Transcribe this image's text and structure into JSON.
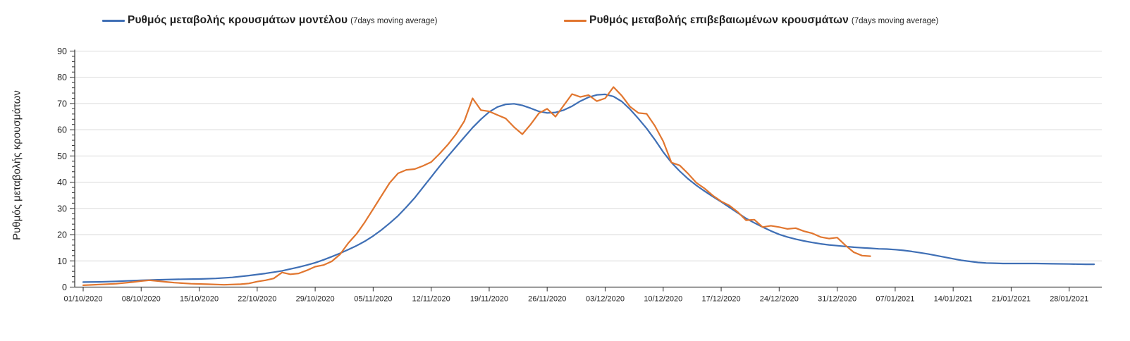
{
  "legend": [
    {
      "label": "Ρυθμός μεταβολής κρουσμάτων μοντέλου",
      "suffix": "(7days moving average)",
      "color": "#3F6FB5"
    },
    {
      "label": "Ρυθμός μεταβολής επιβεβαιωμένων κρουσμάτων",
      "suffix": "(7days moving average)",
      "color": "#E1762F"
    }
  ],
  "y_axis_title": "Ρυθμός μεταβολής κρουσμάτων",
  "colors": {
    "model_line": "#3F6FB5",
    "confirmed_line": "#E1762F",
    "gridline": "#D9D9D9",
    "axis": "#404040",
    "text": "#262626",
    "background": "#FFFFFF"
  },
  "chart_data": {
    "type": "line",
    "title": "",
    "xlabel": "",
    "ylabel": "Ρυθμός μεταβολής κρουσμάτων",
    "ylim": [
      0,
      90
    ],
    "y_ticks": [
      0,
      10,
      20,
      30,
      40,
      50,
      60,
      70,
      80,
      90
    ],
    "y_minor_tick_step": 2,
    "grid": "horizontal",
    "legend_position": "top",
    "x_unit": "days since 01/10/2020, weekly labeled ticks",
    "x_tick_days": [
      0,
      7,
      14,
      21,
      28,
      35,
      42,
      49,
      56,
      63,
      70,
      77,
      84,
      91,
      98,
      105,
      112,
      119
    ],
    "x_tick_labels": [
      "01/10/2020",
      "08/10/2020",
      "15/10/2020",
      "22/10/2020",
      "29/10/2020",
      "05/11/2020",
      "12/11/2020",
      "19/11/2020",
      "26/11/2020",
      "03/12/2020",
      "10/12/2020",
      "17/12/2020",
      "24/12/2020",
      "31/12/2020",
      "07/01/2021",
      "14/01/2021",
      "21/01/2021",
      "28/01/2021"
    ],
    "series": [
      {
        "name": "Ρυθμός μεταβολής κρουσμάτων μοντέλου (7days moving average)",
        "color": "#3F6FB5",
        "points": [
          [
            0,
            1.9
          ],
          [
            2,
            2.0
          ],
          [
            4,
            2.2
          ],
          [
            7,
            2.6
          ],
          [
            9,
            2.8
          ],
          [
            12,
            3.0
          ],
          [
            14,
            3.1
          ],
          [
            16,
            3.3
          ],
          [
            18,
            3.7
          ],
          [
            20,
            4.4
          ],
          [
            21,
            4.8
          ],
          [
            22,
            5.2
          ],
          [
            23,
            5.7
          ],
          [
            24,
            6.2
          ],
          [
            25,
            6.9
          ],
          [
            26,
            7.6
          ],
          [
            27,
            8.4
          ],
          [
            28,
            9.3
          ],
          [
            29,
            10.4
          ],
          [
            30,
            11.6
          ],
          [
            31,
            12.9
          ],
          [
            32,
            14.3
          ],
          [
            33,
            15.8
          ],
          [
            34,
            17.5
          ],
          [
            35,
            19.5
          ],
          [
            36,
            21.8
          ],
          [
            37,
            24.4
          ],
          [
            38,
            27.2
          ],
          [
            39,
            30.5
          ],
          [
            40,
            34.0
          ],
          [
            41,
            38.0
          ],
          [
            42,
            42.0
          ],
          [
            43,
            46.0
          ],
          [
            44,
            49.8
          ],
          [
            45,
            53.5
          ],
          [
            46,
            57.2
          ],
          [
            47,
            60.8
          ],
          [
            48,
            64.0
          ],
          [
            49,
            66.8
          ],
          [
            50,
            68.7
          ],
          [
            51,
            69.7
          ],
          [
            52,
            69.9
          ],
          [
            53,
            69.3
          ],
          [
            54,
            68.2
          ],
          [
            55,
            67.0
          ],
          [
            56,
            66.4
          ],
          [
            57,
            66.6
          ],
          [
            58,
            67.5
          ],
          [
            59,
            69.0
          ],
          [
            60,
            70.9
          ],
          [
            61,
            72.4
          ],
          [
            62,
            73.3
          ],
          [
            63,
            73.5
          ],
          [
            64,
            72.7
          ],
          [
            65,
            70.8
          ],
          [
            66,
            67.8
          ],
          [
            67,
            64.3
          ],
          [
            68,
            60.5
          ],
          [
            69,
            56.2
          ],
          [
            70,
            51.5
          ],
          [
            71,
            47.5
          ],
          [
            72,
            44.2
          ],
          [
            73,
            41.3
          ],
          [
            74,
            38.8
          ],
          [
            75,
            36.6
          ],
          [
            76,
            34.5
          ],
          [
            77,
            32.5
          ],
          [
            78,
            30.4
          ],
          [
            79,
            28.3
          ],
          [
            80,
            26.2
          ],
          [
            81,
            24.5
          ],
          [
            82,
            22.9
          ],
          [
            83,
            21.4
          ],
          [
            84,
            20.1
          ],
          [
            85,
            19.1
          ],
          [
            86,
            18.3
          ],
          [
            87,
            17.6
          ],
          [
            88,
            17.0
          ],
          [
            89,
            16.5
          ],
          [
            90,
            16.1
          ],
          [
            91,
            15.8
          ],
          [
            92,
            15.5
          ],
          [
            93,
            15.2
          ],
          [
            94,
            15.0
          ],
          [
            95,
            14.8
          ],
          [
            96,
            14.6
          ],
          [
            97,
            14.5
          ],
          [
            98,
            14.3
          ],
          [
            99,
            14.0
          ],
          [
            100,
            13.6
          ],
          [
            101,
            13.1
          ],
          [
            102,
            12.6
          ],
          [
            103,
            12.0
          ],
          [
            104,
            11.4
          ],
          [
            105,
            10.8
          ],
          [
            106,
            10.2
          ],
          [
            107,
            9.8
          ],
          [
            108,
            9.4
          ],
          [
            109,
            9.2
          ],
          [
            110,
            9.1
          ],
          [
            111,
            9.0
          ],
          [
            113,
            9.0
          ],
          [
            115,
            9.0
          ],
          [
            117,
            8.9
          ],
          [
            119,
            8.8
          ],
          [
            121,
            8.7
          ],
          [
            122,
            8.7
          ]
        ]
      },
      {
        "name": "Ρυθμός μεταβολής επιβεβαιωμένων κρουσμάτων (7days moving average)",
        "color": "#E1762F",
        "points": [
          [
            0,
            0.7
          ],
          [
            2,
            1.0
          ],
          [
            4,
            1.3
          ],
          [
            6,
            1.9
          ],
          [
            7,
            2.3
          ],
          [
            8,
            2.6
          ],
          [
            9,
            2.3
          ],
          [
            10,
            2.0
          ],
          [
            11,
            1.7
          ],
          [
            13,
            1.3
          ],
          [
            15,
            1.1
          ],
          [
            17,
            0.9
          ],
          [
            19,
            1.1
          ],
          [
            20,
            1.4
          ],
          [
            21,
            2.1
          ],
          [
            22,
            2.6
          ],
          [
            23,
            3.3
          ],
          [
            24,
            5.6
          ],
          [
            25,
            4.9
          ],
          [
            26,
            5.2
          ],
          [
            27,
            6.4
          ],
          [
            28,
            7.8
          ],
          [
            29,
            8.4
          ],
          [
            30,
            9.8
          ],
          [
            31,
            12.5
          ],
          [
            32,
            16.8
          ],
          [
            33,
            20.3
          ],
          [
            34,
            24.8
          ],
          [
            35,
            29.8
          ],
          [
            36,
            34.8
          ],
          [
            37,
            39.8
          ],
          [
            38,
            43.4
          ],
          [
            39,
            44.7
          ],
          [
            40,
            45.0
          ],
          [
            41,
            46.2
          ],
          [
            42,
            47.7
          ],
          [
            43,
            50.8
          ],
          [
            44,
            54.3
          ],
          [
            45,
            58.3
          ],
          [
            46,
            63.3
          ],
          [
            47,
            72.0
          ],
          [
            48,
            67.5
          ],
          [
            49,
            67.0
          ],
          [
            50,
            65.6
          ],
          [
            51,
            64.3
          ],
          [
            52,
            61.0
          ],
          [
            53,
            58.3
          ],
          [
            54,
            62.0
          ],
          [
            55,
            66.3
          ],
          [
            56,
            68.0
          ],
          [
            57,
            65.0
          ],
          [
            58,
            69.3
          ],
          [
            59,
            73.6
          ],
          [
            60,
            72.5
          ],
          [
            61,
            73.2
          ],
          [
            62,
            70.9
          ],
          [
            63,
            72.0
          ],
          [
            64,
            76.3
          ],
          [
            65,
            73.0
          ],
          [
            66,
            68.8
          ],
          [
            67,
            66.4
          ],
          [
            68,
            66.1
          ],
          [
            69,
            61.5
          ],
          [
            70,
            55.6
          ],
          [
            71,
            47.5
          ],
          [
            72,
            46.4
          ],
          [
            73,
            43.3
          ],
          [
            74,
            39.8
          ],
          [
            75,
            37.6
          ],
          [
            76,
            34.9
          ],
          [
            77,
            32.7
          ],
          [
            78,
            31.1
          ],
          [
            79,
            28.6
          ],
          [
            80,
            25.5
          ],
          [
            81,
            25.7
          ],
          [
            82,
            22.9
          ],
          [
            83,
            23.4
          ],
          [
            84,
            22.9
          ],
          [
            85,
            22.2
          ],
          [
            86,
            22.5
          ],
          [
            87,
            21.3
          ],
          [
            88,
            20.5
          ],
          [
            89,
            19.1
          ],
          [
            90,
            18.5
          ],
          [
            91,
            18.9
          ],
          [
            92,
            15.9
          ],
          [
            93,
            13.3
          ],
          [
            94,
            12.0
          ],
          [
            95,
            11.8
          ]
        ]
      }
    ]
  }
}
